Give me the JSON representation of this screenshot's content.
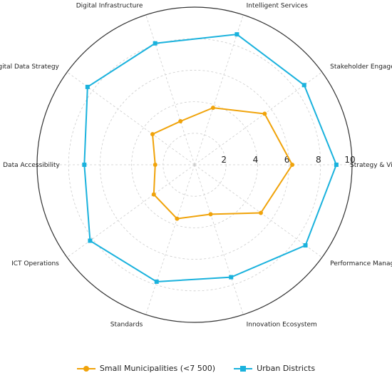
{
  "chart_data": {
    "type": "radar",
    "categories": [
      "Strategy & Vision",
      "Stakeholder Engagement",
      "Intelligent Services",
      "Digital Infrastructure",
      "IT & Digital Data Strategy",
      "Data Accessibility",
      "ICT Operations",
      "Standards",
      "Innovation Ecosystem",
      "Performance Management"
    ],
    "radial_ticks": [
      "2",
      "4",
      "6",
      "8",
      "10"
    ],
    "rlim": [
      0,
      10
    ],
    "grid": true,
    "series": [
      {
        "name": "Small Municipalities (<7 500)",
        "values": [
          6.2,
          5.5,
          3.8,
          2.9,
          3.3,
          2.5,
          3.2,
          3.6,
          3.3,
          5.2
        ],
        "color": "#F0A30A",
        "marker": "circle"
      },
      {
        "name": "Urban Districts",
        "values": [
          9.0,
          8.6,
          8.7,
          8.1,
          8.4,
          7.0,
          8.2,
          7.8,
          7.5,
          8.7
        ],
        "color": "#1AB2DD",
        "marker": "square"
      }
    ],
    "legend_position": "bottom"
  }
}
